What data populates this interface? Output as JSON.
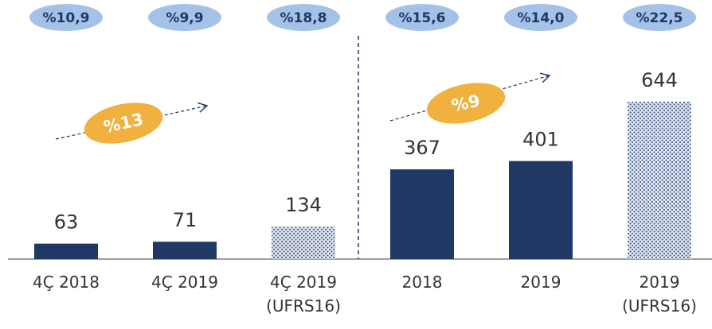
{
  "chart_data": {
    "type": "bar",
    "categories": [
      "4Ç 2018",
      "4Ç 2019",
      "4Ç 2019 (UFRS16)",
      "2018",
      "2019",
      "2019 (UFRS16)"
    ],
    "values": [
      63,
      71,
      134,
      367,
      401,
      644
    ],
    "styles": [
      "solid",
      "solid",
      "dotted",
      "solid",
      "solid",
      "dotted"
    ],
    "color": "#1f3864",
    "ylim": [
      0,
      1060
    ],
    "margin_labels": [
      "%10,9",
      "%9,9",
      "%18,8",
      "%15,6",
      "%14,0",
      "%22,5"
    ],
    "growth_labels": [
      "%13",
      "%9"
    ]
  }
}
